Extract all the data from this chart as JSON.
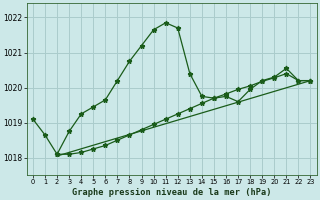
{
  "title": "Graphe pression niveau de la mer (hPa)",
  "background_color": "#cce8e8",
  "grid_color": "#aacccc",
  "line_color": "#1a5c1a",
  "xlim": [
    -0.5,
    23.5
  ],
  "ylim": [
    1017.5,
    1022.4
  ],
  "yticks": [
    1018,
    1019,
    1020,
    1021,
    1022
  ],
  "xticks": [
    0,
    1,
    2,
    3,
    4,
    5,
    6,
    7,
    8,
    9,
    10,
    11,
    12,
    13,
    14,
    15,
    16,
    17,
    18,
    19,
    20,
    21,
    22,
    23
  ],
  "series1_x": [
    0,
    1,
    2,
    3,
    4,
    5,
    6,
    7,
    8,
    9,
    10,
    11,
    12,
    13,
    14,
    15,
    16,
    17,
    18,
    19,
    20,
    21,
    22,
    23
  ],
  "series1_y": [
    1019.1,
    1018.65,
    1018.1,
    1018.75,
    1019.25,
    1019.45,
    1019.65,
    1020.2,
    1020.75,
    1021.2,
    1021.65,
    1021.85,
    1021.7,
    1020.4,
    1019.75,
    1019.7,
    1019.75,
    1019.6,
    1019.95,
    1020.2,
    1020.3,
    1020.55,
    1020.2,
    1020.2
  ],
  "series2_x": [
    2,
    3,
    4,
    5,
    6,
    7,
    8,
    9,
    10,
    11,
    12,
    13,
    14,
    15,
    16,
    17,
    18,
    19,
    20,
    21,
    22,
    23
  ],
  "series2_y": [
    1018.1,
    1018.1,
    1018.15,
    1018.25,
    1018.35,
    1018.5,
    1018.65,
    1018.8,
    1018.95,
    1019.1,
    1019.25,
    1019.4,
    1019.55,
    1019.7,
    1019.82,
    1019.95,
    1020.05,
    1020.18,
    1020.28,
    1020.4,
    1020.2,
    1020.2
  ],
  "series3_x": [
    2,
    23
  ],
  "series3_y": [
    1018.05,
    1020.2
  ]
}
